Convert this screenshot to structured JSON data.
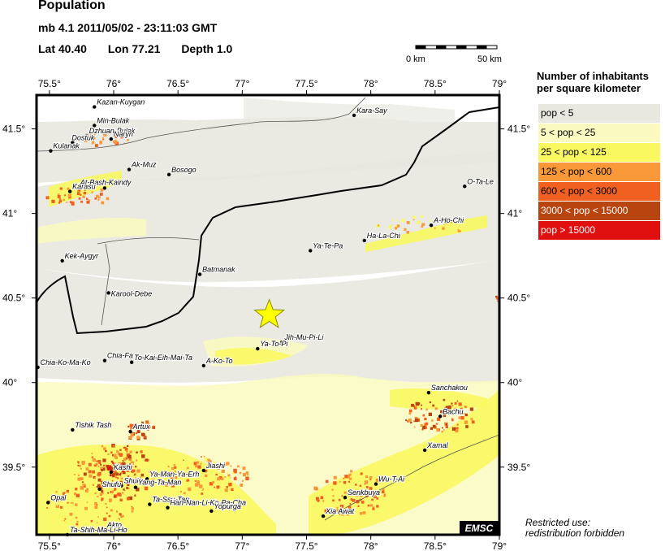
{
  "header": {
    "title": "Population",
    "event_line": "mb 4.1  2011/05/02 - 23:11:03 GMT",
    "lat": "Lat 40.40",
    "lon": "Lon  77.21",
    "depth": "Depth  1.0"
  },
  "scale": {
    "start": "0 km",
    "end": "50 km"
  },
  "legend": {
    "title_line1": "Number of inhabitants",
    "title_line2": "per square kilometer",
    "items": [
      {
        "label": "pop < 5",
        "color": "#e8e8e0"
      },
      {
        "label": "5 < pop < 25",
        "color": "#fafac0"
      },
      {
        "label": "25 < pop < 125",
        "color": "#f8f860"
      },
      {
        "label": "125 < pop < 600",
        "color": "#f89838"
      },
      {
        "label": "600 < pop < 3000",
        "color": "#f06020"
      },
      {
        "label": "3000 < pop < 15000",
        "color": "#b84410"
      },
      {
        "label": "pop > 15000",
        "color": "#e01010"
      }
    ]
  },
  "axes": {
    "x_ticks": [
      "75.5°",
      "76°",
      "76.5°",
      "77°",
      "77.5°",
      "78°",
      "78.5°",
      "79°"
    ],
    "y_ticks": [
      "41.5°",
      "41°",
      "40.5°",
      "40°",
      "39.5°"
    ]
  },
  "map_data": {
    "lon_range": [
      75.4,
      79.0
    ],
    "lat_range": [
      39.1,
      41.7
    ],
    "epicenter": {
      "lon": 77.21,
      "lat": 40.4
    },
    "places": [
      {
        "name": "Kazan-Kuygan",
        "lon": 75.85,
        "lat": 41.63,
        "dx": 3,
        "dy": -3
      },
      {
        "name": "Kara-Say",
        "lon": 77.87,
        "lat": 41.58,
        "dx": 3,
        "dy": -3
      },
      {
        "name": "Min-Bulak",
        "lon": 75.85,
        "lat": 41.52,
        "dx": 3,
        "dy": -3
      },
      {
        "name": "Dzhuan-Bulak",
        "lon": 75.79,
        "lat": 41.46,
        "dx": 3,
        "dy": -3
      },
      {
        "name": "Naryn",
        "lon": 75.98,
        "lat": 41.44,
        "dx": 3,
        "dy": -3
      },
      {
        "name": "Dostuk",
        "lon": 75.68,
        "lat": 41.42,
        "dx": -1,
        "dy": -3
      },
      {
        "name": "Kulanak",
        "lon": 75.51,
        "lat": 41.37,
        "dx": 3,
        "dy": -3
      },
      {
        "name": "Ak-Muz",
        "lon": 76.12,
        "lat": 41.26,
        "dx": 3,
        "dy": -3
      },
      {
        "name": "Bosogo",
        "lon": 76.43,
        "lat": 41.23,
        "dx": 3,
        "dy": -3
      },
      {
        "name": "At-Bash-Kaindy",
        "lon": 75.93,
        "lat": 41.15,
        "dx": -30,
        "dy": -4
      },
      {
        "name": "Karasu",
        "lon": 75.66,
        "lat": 41.13,
        "dx": 3,
        "dy": -3
      },
      {
        "name": "O-Ta-Le",
        "lon": 78.73,
        "lat": 41.16,
        "dx": 3,
        "dy": -3
      },
      {
        "name": "A-Ho-Chi",
        "lon": 78.47,
        "lat": 40.93,
        "dx": 3,
        "dy": -3
      },
      {
        "name": "Ha-La-Chi",
        "lon": 77.95,
        "lat": 40.84,
        "dx": 3,
        "dy": -3
      },
      {
        "name": "Ya-Te-Pa",
        "lon": 77.53,
        "lat": 40.78,
        "dx": 3,
        "dy": -3
      },
      {
        "name": "Kek-Aygyr",
        "lon": 75.6,
        "lat": 40.72,
        "dx": 3,
        "dy": -3
      },
      {
        "name": "Batmanak",
        "lon": 76.67,
        "lat": 40.64,
        "dx": 3,
        "dy": -3
      },
      {
        "name": "Karool-Debe",
        "lon": 75.96,
        "lat": 40.53,
        "dx": 3,
        "dy": 4
      },
      {
        "name": "Jih-Mu-Pi-Li",
        "lon": 77.31,
        "lat": 40.24,
        "dx": 3,
        "dy": -3
      },
      {
        "name": "Ya-To-Pi",
        "lon": 77.12,
        "lat": 40.2,
        "dx": 3,
        "dy": -3
      },
      {
        "name": "Chia-Fa",
        "lon": 75.93,
        "lat": 40.13,
        "dx": 3,
        "dy": -3
      },
      {
        "name": "To-Kai-Eih-Mai-Ta",
        "lon": 76.14,
        "lat": 40.12,
        "dx": 3,
        "dy": -3
      },
      {
        "name": "A-Ko-To",
        "lon": 76.7,
        "lat": 40.1,
        "dx": 3,
        "dy": -3
      },
      {
        "name": "Chia-Ko-Ma-Ko",
        "lon": 75.41,
        "lat": 40.09,
        "dx": 3,
        "dy": -3
      },
      {
        "name": "Sanchakou",
        "lon": 78.45,
        "lat": 39.94,
        "dx": 3,
        "dy": -3
      },
      {
        "name": "Bachu",
        "lon": 78.54,
        "lat": 39.8,
        "dx": 3,
        "dy": -3
      },
      {
        "name": "Tishik Tash",
        "lon": 75.68,
        "lat": 39.72,
        "dx": 3,
        "dy": -3
      },
      {
        "name": "Artux",
        "lon": 76.13,
        "lat": 39.71,
        "dx": 3,
        "dy": -3
      },
      {
        "name": "Xamal",
        "lon": 78.42,
        "lat": 39.6,
        "dx": 3,
        "dy": -3
      },
      {
        "name": "Jiashi",
        "lon": 76.7,
        "lat": 39.48,
        "dx": 3,
        "dy": -3
      },
      {
        "name": "Kashi",
        "lon": 75.98,
        "lat": 39.47,
        "dx": 3,
        "dy": -3
      },
      {
        "name": "Ya-Man-Ya-Erh",
        "lon": 76.26,
        "lat": 39.43,
        "dx": 3,
        "dy": -3
      },
      {
        "name": "Wu-T-Ai",
        "lon": 78.04,
        "lat": 39.4,
        "dx": 3,
        "dy": -3
      },
      {
        "name": "Shule",
        "lon": 76.06,
        "lat": 39.39,
        "dx": 3,
        "dy": -3
      },
      {
        "name": "Yang-Ta-Man",
        "lon": 76.17,
        "lat": 39.38,
        "dx": 3,
        "dy": -3
      },
      {
        "name": "Shufu",
        "lon": 75.89,
        "lat": 39.37,
        "dx": 3,
        "dy": -3
      },
      {
        "name": "Senkbuya",
        "lon": 77.8,
        "lat": 39.32,
        "dx": 3,
        "dy": -3
      },
      {
        "name": "Opal",
        "lon": 75.49,
        "lat": 39.29,
        "dx": 3,
        "dy": -3
      },
      {
        "name": "Ta-Ssu-Tan",
        "lon": 76.28,
        "lat": 39.28,
        "dx": 3,
        "dy": -3
      },
      {
        "name": "Han-Nan-Li-Ko-Pa-Cha",
        "lon": 76.42,
        "lat": 39.26,
        "dx": 3,
        "dy": -3
      },
      {
        "name": "Yopurga",
        "lon": 76.76,
        "lat": 39.24,
        "dx": 3,
        "dy": -3
      },
      {
        "name": "Xia Awat",
        "lon": 77.63,
        "lat": 39.21,
        "dx": 3,
        "dy": -3
      },
      {
        "name": "Akto",
        "lon": 75.93,
        "lat": 39.13,
        "dx": 3,
        "dy": -3
      },
      {
        "name": "Ta-Shih-Ma-Li-Ho",
        "lon": 75.64,
        "lat": 39.1,
        "dx": 3,
        "dy": -3
      }
    ]
  },
  "logo": "EMSC",
  "notice": {
    "line1": "Restricted use:",
    "line2": "redistribution forbidden"
  }
}
